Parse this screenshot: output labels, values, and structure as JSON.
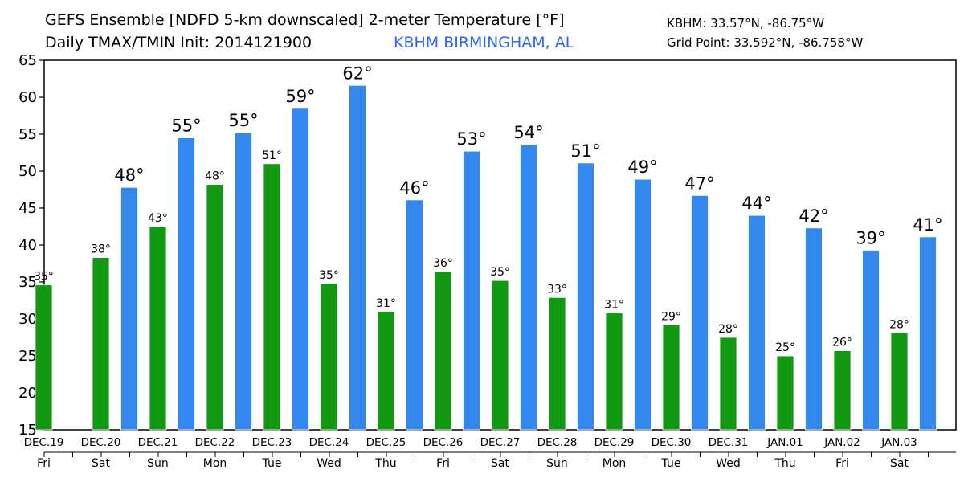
{
  "header": {
    "title_line1": "GEFS Ensemble [NDFD 5-km downscaled] 2-meter Temperature [°F]",
    "title_line2": "Daily TMAX/TMIN Init: 2014121900",
    "location": "KBHM BIRMINGHAM, AL",
    "station_coords": "KBHM: 33.57°N, -86.75°W",
    "grid_point": "Grid Point: 33.592°N, -86.758°W"
  },
  "chart_data": {
    "type": "bar",
    "ylim": [
      15,
      65
    ],
    "yticks": [
      15,
      20,
      25,
      30,
      35,
      40,
      45,
      50,
      55,
      60,
      65
    ],
    "colors": {
      "tmax": "#3388ee",
      "tmin": "#119911"
    },
    "dates": [
      "DEC.19",
      "DEC.20",
      "DEC.21",
      "DEC.22",
      "DEC.23",
      "DEC.24",
      "DEC.25",
      "DEC.26",
      "DEC.27",
      "DEC.28",
      "DEC.29",
      "DEC.30",
      "DEC.31",
      "JAN.01",
      "JAN.02",
      "JAN.03"
    ],
    "days": [
      "Fri",
      "Sat",
      "Sun",
      "Mon",
      "Tue",
      "Wed",
      "Thu",
      "Fri",
      "Sat",
      "Sun",
      "Mon",
      "Tue",
      "Wed",
      "Thu",
      "Fri",
      "Sat"
    ],
    "tmax": [
      null,
      47.8,
      54.5,
      55.2,
      58.5,
      61.6,
      46.1,
      52.7,
      53.6,
      51.1,
      48.9,
      46.7,
      44.0,
      42.3,
      39.3,
      41.1
    ],
    "tmax_labels": [
      "",
      "48°",
      "55°",
      "55°",
      "59°",
      "62°",
      "46°",
      "53°",
      "54°",
      "51°",
      "49°",
      "47°",
      "44°",
      "42°",
      "39°",
      "41°"
    ],
    "tmin": [
      34.6,
      38.3,
      42.5,
      48.2,
      51.0,
      34.8,
      31.0,
      36.4,
      35.2,
      32.9,
      30.8,
      29.2,
      27.5,
      25.0,
      25.7,
      28.1
    ],
    "tmin_labels": [
      "35°",
      "38°",
      "43°",
      "48°",
      "51°",
      "35°",
      "31°",
      "36°",
      "35°",
      "33°",
      "31°",
      "29°",
      "28°",
      "25°",
      "26°",
      "28°"
    ]
  }
}
